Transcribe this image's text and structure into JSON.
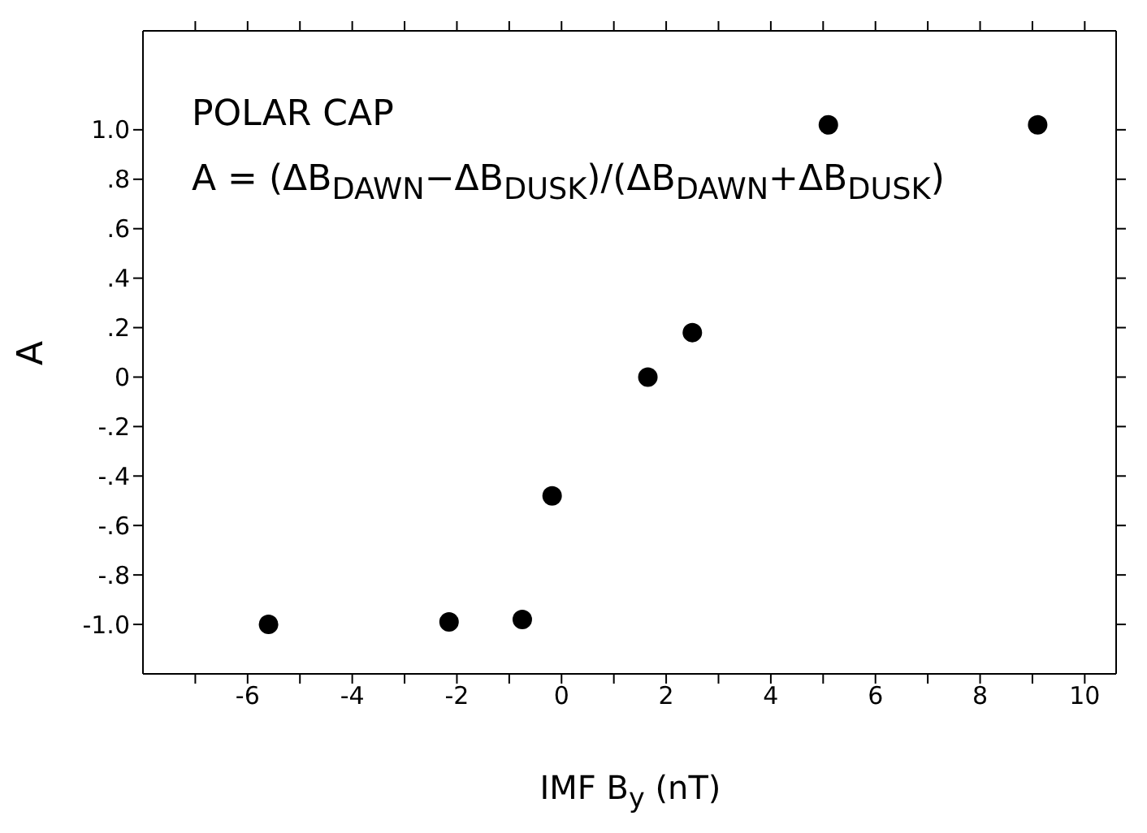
{
  "chart_data": {
    "type": "scatter",
    "xlabel": "IMF B$_{y}$ (nT)",
    "ylabel": "A",
    "annotations": [
      "POLAR CAP",
      "A = (ΔB$_{DAWN}$−ΔB$_{DUSK}$)/(ΔB$_{DAWN}$+ΔB$_{DUSK}$)"
    ],
    "x": [
      -5.6,
      -2.15,
      -0.75,
      -0.18,
      1.65,
      2.5,
      5.1,
      9.1
    ],
    "series": [
      {
        "color": "#000000",
        "values": [
          -1.0,
          -0.99,
          -0.98,
          -0.48,
          0.0,
          0.18,
          1.02,
          1.02
        ]
      }
    ],
    "xlim": [
      -8,
      10.6
    ],
    "xticks": [
      {
        "value": -7,
        "label": null
      },
      {
        "value": -6,
        "label": "-6"
      },
      {
        "value": -5,
        "label": null
      },
      {
        "value": -4,
        "label": "-4"
      },
      {
        "value": -3,
        "label": null
      },
      {
        "value": -2,
        "label": "-2"
      },
      {
        "value": -1,
        "label": null
      },
      0,
      {
        "value": 1,
        "label": null
      },
      2,
      {
        "value": 3,
        "label": null
      },
      4,
      {
        "value": 5,
        "label": null
      },
      6,
      {
        "value": 7,
        "label": null
      },
      8,
      {
        "value": 9,
        "label": null
      },
      10
    ],
    "ylim": [
      -1.2,
      1.4
    ],
    "yticks": [
      {
        "value": -1,
        "label": "-1.0"
      },
      {
        "value": -0.8,
        "label": "-.8"
      },
      {
        "value": -0.6,
        "label": "-.6"
      },
      {
        "value": -0.4,
        "label": "-.4"
      },
      {
        "value": -0.2,
        "label": "-.2"
      },
      0,
      {
        "value": 0.2,
        "label": ".2"
      },
      {
        "value": 0.4,
        "label": ".4"
      },
      {
        "value": 0.6,
        "label": ".6"
      },
      {
        "value": 0.8,
        "label": ".8"
      },
      {
        "value": 1,
        "label": "1.0"
      }
    ],
    "grid": false,
    "legend": false,
    "marker": "circle"
  }
}
